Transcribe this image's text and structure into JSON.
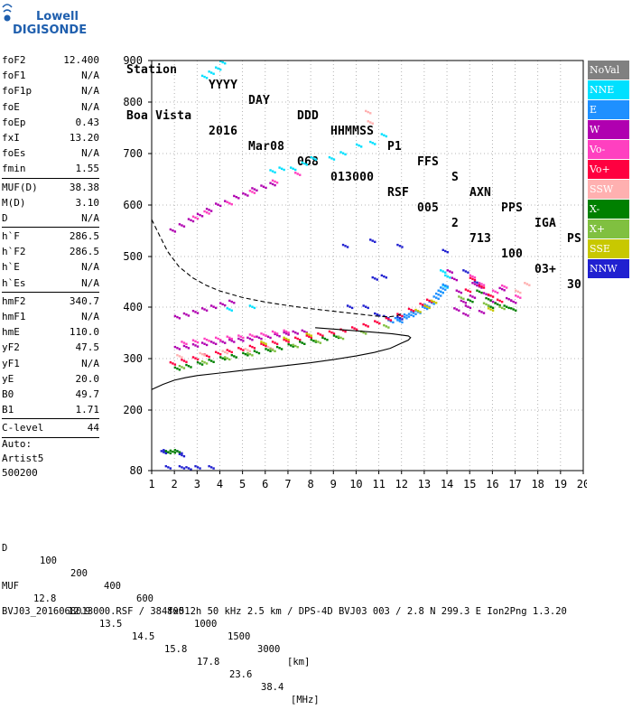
{
  "logo": {
    "line1": "Lowell",
    "line2": "DIGISONDE"
  },
  "header": {
    "row1": [
      "Station",
      "YYYY",
      "DAY",
      "DDD",
      "HHMMSS",
      "P1",
      "FFS",
      "S",
      "AXN",
      "PPS",
      "IGA",
      "PS"
    ],
    "row2": [
      "Boa Vista",
      "2016",
      "Mar08",
      "068",
      "013000",
      "RSF",
      "005",
      "2",
      "713",
      "100",
      "03+",
      "30"
    ]
  },
  "params": [
    {
      "label": "foF2",
      "value": "12.400"
    },
    {
      "label": "foF1",
      "value": "N/A"
    },
    {
      "label": "foF1p",
      "value": "N/A"
    },
    {
      "label": "foE",
      "value": "N/A"
    },
    {
      "label": "foEp",
      "value": "0.43"
    },
    {
      "label": "fxI",
      "value": "13.20"
    },
    {
      "label": "foEs",
      "value": "N/A"
    },
    {
      "label": "fmin",
      "value": "1.55"
    },
    {
      "sep": true
    },
    {
      "label": "MUF(D)",
      "value": "38.38"
    },
    {
      "label": "M(D)",
      "value": "3.10"
    },
    {
      "label": "D",
      "value": "N/A"
    },
    {
      "sep": true
    },
    {
      "label": "h`F",
      "value": "286.5"
    },
    {
      "label": "h`F2",
      "value": "286.5"
    },
    {
      "label": "h`E",
      "value": "N/A"
    },
    {
      "label": "h`Es",
      "value": "N/A"
    },
    {
      "sep": true
    },
    {
      "label": "hmF2",
      "value": "340.7"
    },
    {
      "label": "hmF1",
      "value": "N/A"
    },
    {
      "label": "hmE",
      "value": "110.0"
    },
    {
      "label": "yF2",
      "value": "47.5"
    },
    {
      "label": "yF1",
      "value": "N/A"
    },
    {
      "label": "yE",
      "value": "20.0"
    },
    {
      "label": "B0",
      "value": "49.7"
    },
    {
      "label": "B1",
      "value": "1.71"
    },
    {
      "sep": true
    },
    {
      "label": "C-level",
      "value": "44"
    },
    {
      "sep": true
    }
  ],
  "auto": {
    "line1": "Auto:",
    "line2": "Artist5",
    "line3": "500200"
  },
  "legend": [
    {
      "label": "NoVal",
      "color": "#808080"
    },
    {
      "label": "NNE",
      "color": "#00e0ff"
    },
    {
      "label": "E",
      "color": "#1e90ff"
    },
    {
      "label": "W",
      "color": "#b000b0"
    },
    {
      "label": "Vo-",
      "color": "#ff40c0"
    },
    {
      "label": "Vo+",
      "color": "#ff0040"
    },
    {
      "label": "SSW",
      "color": "#ffb0b0"
    },
    {
      "label": "X-",
      "color": "#008000"
    },
    {
      "label": "X+",
      "color": "#80c040"
    },
    {
      "label": "SSE",
      "color": "#c8c800"
    },
    {
      "label": "NNW",
      "color": "#2020d0"
    }
  ],
  "footer": {
    "d_label": "D",
    "d_values": [
      "100",
      "200",
      "400",
      "600",
      "800",
      "1000",
      "1500",
      "3000"
    ],
    "d_unit": "[km]",
    "muf_label": "MUF",
    "muf_values": [
      "12.8",
      "12.9",
      "13.5",
      "14.5",
      "15.8",
      "17.8",
      "23.6",
      "38.4"
    ],
    "muf_unit": "[MHz]",
    "fileinfo": "BVJ03_2016068013000.RSF / 384fx512h 50 kHz 2.5 km / DPS-4D BVJ03 003 / 2.8 N 299.3 E Ion2Png 1.3.20"
  },
  "chart_data": {
    "type": "scatter",
    "xlim": [
      1,
      20
    ],
    "ylim": [
      80,
      900
    ],
    "xticks": [
      1,
      2,
      3,
      4,
      5,
      6,
      7,
      8,
      9,
      10,
      11,
      12,
      13,
      14,
      15,
      16,
      17,
      18,
      19,
      20
    ],
    "yticks": [
      80,
      200,
      300,
      400,
      500,
      600,
      700,
      800,
      900
    ],
    "grid": "dotted",
    "legend_position": "right",
    "series": [
      {
        "color": "#2020d0",
        "points": [
          [
            1.6,
            116
          ],
          [
            1.7,
            118
          ],
          [
            2.3,
            116
          ],
          [
            2.4,
            110
          ],
          [
            1.8,
            86
          ],
          [
            2.4,
            86
          ],
          [
            2.7,
            84
          ],
          [
            3.1,
            86
          ],
          [
            3.7,
            86
          ],
          [
            9.6,
            520
          ],
          [
            10.8,
            530
          ],
          [
            10.9,
            456
          ],
          [
            11.3,
            460
          ],
          [
            12.0,
            520
          ],
          [
            14.0,
            510
          ],
          [
            14.9,
            470
          ],
          [
            15.4,
            448
          ],
          [
            10.5,
            400
          ],
          [
            11.0,
            385
          ],
          [
            11.4,
            380
          ],
          [
            12.0,
            378
          ],
          [
            9.8,
            400
          ]
        ]
      },
      {
        "color": "#00e0ff",
        "points": [
          [
            4.2,
            895
          ],
          [
            4.0,
            880
          ],
          [
            3.7,
            870
          ],
          [
            3.4,
            860
          ],
          [
            6.4,
            665
          ],
          [
            6.8,
            670
          ],
          [
            7.3,
            670
          ],
          [
            7.8,
            680
          ],
          [
            8.2,
            690
          ],
          [
            9.0,
            690
          ],
          [
            9.5,
            700
          ],
          [
            10.2,
            715
          ],
          [
            10.8,
            720
          ],
          [
            11.3,
            735
          ],
          [
            14.0,
            440
          ],
          [
            13.8,
            430
          ],
          [
            14.1,
            460
          ],
          [
            13.9,
            470
          ],
          [
            4.5,
            395
          ],
          [
            5.5,
            400
          ]
        ]
      },
      {
        "color": "#1e90ff",
        "points": [
          [
            11.9,
            376
          ],
          [
            12.2,
            380
          ],
          [
            12.5,
            384
          ],
          [
            12.8,
            390
          ],
          [
            13.1,
            398
          ],
          [
            13.4,
            408
          ],
          [
            13.6,
            418
          ],
          [
            13.8,
            430
          ],
          [
            14.0,
            442
          ],
          [
            12.0,
            372
          ],
          [
            12.6,
            388
          ],
          [
            13.2,
            402
          ],
          [
            13.7,
            424
          ],
          [
            13.9,
            436
          ],
          [
            11.6,
            372
          ],
          [
            12.3,
            383
          ]
        ]
      },
      {
        "color": "#b000b0",
        "points": [
          [
            2.0,
            550
          ],
          [
            2.4,
            560
          ],
          [
            2.8,
            570
          ],
          [
            3.2,
            580
          ],
          [
            3.6,
            590
          ],
          [
            4.0,
            600
          ],
          [
            4.4,
            605
          ],
          [
            4.8,
            615
          ],
          [
            5.2,
            620
          ],
          [
            5.6,
            630
          ],
          [
            6.0,
            635
          ],
          [
            6.4,
            640
          ],
          [
            2.2,
            380
          ],
          [
            2.6,
            385
          ],
          [
            3.0,
            390
          ],
          [
            3.4,
            395
          ],
          [
            3.8,
            400
          ],
          [
            4.2,
            405
          ],
          [
            4.6,
            410
          ],
          [
            2.2,
            320
          ],
          [
            2.6,
            322
          ],
          [
            3.0,
            325
          ],
          [
            3.4,
            328
          ],
          [
            3.8,
            330
          ],
          [
            4.2,
            332
          ],
          [
            4.6,
            334
          ],
          [
            5.0,
            336
          ],
          [
            5.4,
            338
          ],
          [
            5.8,
            340
          ],
          [
            6.2,
            342
          ],
          [
            6.6,
            345
          ],
          [
            7.0,
            348
          ],
          [
            7.4,
            350
          ],
          [
            7.8,
            352
          ],
          [
            14.4,
            455
          ],
          [
            14.6,
            430
          ],
          [
            14.8,
            410
          ],
          [
            15.0,
            400
          ],
          [
            15.2,
            420
          ],
          [
            15.5,
            440
          ],
          [
            15.8,
            425
          ],
          [
            16.1,
            410
          ],
          [
            14.5,
            395
          ],
          [
            14.9,
            385
          ],
          [
            15.3,
            445
          ],
          [
            16.5,
            435
          ],
          [
            16.8,
            415
          ],
          [
            17.0,
            410
          ],
          [
            14.2,
            470
          ],
          [
            15.6,
            390
          ]
        ]
      },
      {
        "color": "#ff40c0",
        "points": [
          [
            2.5,
            330
          ],
          [
            3.0,
            333
          ],
          [
            3.5,
            336
          ],
          [
            4.0,
            338
          ],
          [
            4.5,
            340
          ],
          [
            5.0,
            342
          ],
          [
            5.5,
            344
          ],
          [
            6.0,
            346
          ],
          [
            6.5,
            350
          ],
          [
            7.0,
            352
          ],
          [
            15.2,
            460
          ],
          [
            15.6,
            445
          ],
          [
            16.2,
            430
          ],
          [
            16.6,
            440
          ],
          [
            17.2,
            420
          ],
          [
            3.0,
            575
          ],
          [
            3.5,
            585
          ],
          [
            4.5,
            603
          ],
          [
            5.5,
            625
          ],
          [
            6.5,
            645
          ],
          [
            7.5,
            660
          ]
        ]
      },
      {
        "color": "#ff0040",
        "points": [
          [
            2.0,
            290
          ],
          [
            2.5,
            295
          ],
          [
            3.0,
            300
          ],
          [
            3.5,
            305
          ],
          [
            4.0,
            310
          ],
          [
            4.5,
            314
          ],
          [
            5.0,
            318
          ],
          [
            5.5,
            322
          ],
          [
            6.0,
            326
          ],
          [
            6.5,
            330
          ],
          [
            7.0,
            334
          ],
          [
            7.5,
            338
          ],
          [
            8.0,
            342
          ],
          [
            8.5,
            346
          ],
          [
            9.0,
            350
          ],
          [
            9.5,
            354
          ],
          [
            10.0,
            358
          ],
          [
            10.5,
            364
          ],
          [
            11.0,
            370
          ],
          [
            11.5,
            376
          ],
          [
            12.0,
            384
          ],
          [
            12.5,
            394
          ],
          [
            13.0,
            404
          ],
          [
            13.3,
            412
          ],
          [
            15.2,
            455
          ],
          [
            15.6,
            440
          ],
          [
            16.0,
            422
          ],
          [
            16.4,
            412
          ],
          [
            15.0,
            432
          ]
        ]
      },
      {
        "color": "#ffb0b0",
        "points": [
          [
            2.3,
            304
          ],
          [
            3.3,
            308
          ],
          [
            4.3,
            312
          ],
          [
            5.3,
            316
          ],
          [
            6.3,
            320
          ],
          [
            10.6,
            780
          ],
          [
            10.7,
            760
          ],
          [
            17.2,
            430
          ],
          [
            17.6,
            445
          ]
        ]
      },
      {
        "color": "#008000",
        "points": [
          [
            1.8,
            116
          ],
          [
            2.0,
            117
          ],
          [
            2.2,
            118
          ],
          [
            2.2,
            280
          ],
          [
            2.7,
            285
          ],
          [
            3.2,
            290
          ],
          [
            3.7,
            295
          ],
          [
            4.2,
            300
          ],
          [
            4.7,
            304
          ],
          [
            5.2,
            308
          ],
          [
            5.7,
            312
          ],
          [
            6.2,
            316
          ],
          [
            6.7,
            320
          ],
          [
            7.2,
            325
          ],
          [
            7.7,
            330
          ],
          [
            8.2,
            334
          ],
          [
            8.7,
            338
          ],
          [
            9.2,
            342
          ],
          [
            15.5,
            430
          ],
          [
            15.9,
            415
          ],
          [
            16.3,
            405
          ],
          [
            16.7,
            400
          ],
          [
            17.0,
            395
          ],
          [
            16.0,
            400
          ],
          [
            15.1,
            412
          ]
        ]
      },
      {
        "color": "#80c040",
        "points": [
          [
            2.4,
            283
          ],
          [
            3.4,
            292
          ],
          [
            4.4,
            300
          ],
          [
            5.4,
            308
          ],
          [
            6.4,
            316
          ],
          [
            7.4,
            324
          ],
          [
            8.4,
            332
          ],
          [
            9.4,
            340
          ],
          [
            10.4,
            350
          ],
          [
            11.4,
            362
          ],
          [
            15.8,
            405
          ],
          [
            16.5,
            398
          ],
          [
            14.7,
            418
          ]
        ]
      },
      {
        "color": "#c8c800",
        "points": [
          [
            12.8,
            392
          ],
          [
            13.2,
            400
          ],
          [
            13.5,
            410
          ],
          [
            6.0,
            330
          ],
          [
            7.0,
            338
          ],
          [
            8.0,
            346
          ],
          [
            16.0,
            395
          ]
        ]
      }
    ],
    "virtual_height_curve": {
      "style": "dashed",
      "points": [
        [
          1,
          572
        ],
        [
          1.3,
          545
        ],
        [
          1.7,
          510
        ],
        [
          2.2,
          480
        ],
        [
          2.8,
          458
        ],
        [
          3.4,
          443
        ],
        [
          4.0,
          432
        ],
        [
          5.0,
          419
        ],
        [
          6.0,
          410
        ],
        [
          7.0,
          403
        ],
        [
          8.0,
          397
        ],
        [
          9.0,
          392
        ],
        [
          10.0,
          387
        ],
        [
          10.8,
          383
        ],
        [
          11.4,
          381
        ],
        [
          11.8,
          383
        ],
        [
          12.0,
          388
        ]
      ]
    },
    "true_height_profile": {
      "style": "solid",
      "points": [
        [
          1,
          240
        ],
        [
          1.5,
          250
        ],
        [
          2.0,
          258
        ],
        [
          2.5,
          263
        ],
        [
          3.0,
          267
        ],
        [
          4.0,
          272
        ],
        [
          5.0,
          277
        ],
        [
          6.0,
          282
        ],
        [
          7.0,
          287
        ],
        [
          8.0,
          292
        ],
        [
          9.0,
          298
        ],
        [
          10.0,
          305
        ],
        [
          10.8,
          312
        ],
        [
          11.5,
          320
        ],
        [
          12.0,
          330
        ],
        [
          12.3,
          336
        ],
        [
          12.4,
          340.7
        ],
        [
          12.3,
          344
        ],
        [
          11.6,
          348
        ],
        [
          10.6,
          352
        ],
        [
          9.4,
          356
        ],
        [
          8.2,
          360
        ]
      ]
    }
  }
}
